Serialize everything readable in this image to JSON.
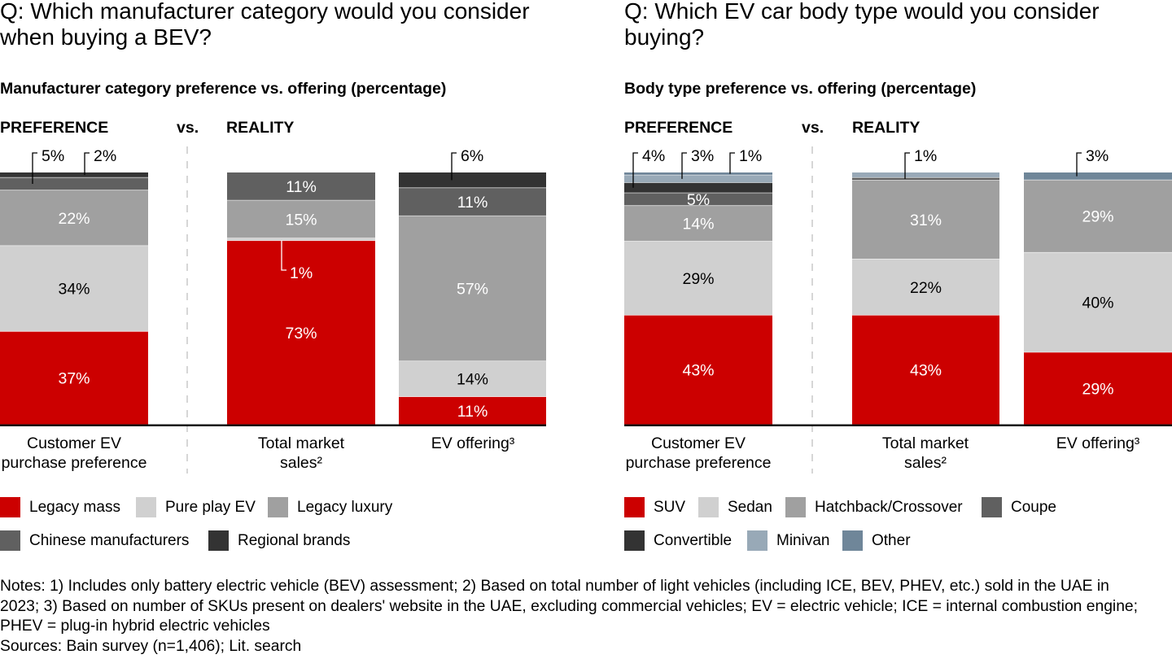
{
  "colors": {
    "red": "#cc0000",
    "light_gray": "#d0d0d0",
    "mid_gray": "#a0a0a0",
    "dark_gray": "#606060",
    "darkest": "#333333",
    "minivan": "#98a9b7",
    "other": "#6f8699",
    "divider": "#c8c8c8",
    "baseline": "#111111"
  },
  "panels": [
    {
      "question_lines": [
        "Q: Which manufacturer category would you consider",
        "when buying a BEV?"
      ],
      "vs_label": "vs."
    },
    {
      "question_lines": [
        "Q: Which EV car body type would you consider",
        "buying?"
      ],
      "vs_label": "vs."
    }
  ],
  "chart_data": [
    {
      "type": "bar",
      "stacked": true,
      "title": "Manufacturer category preference vs. offering (percentage)",
      "xlabel": "",
      "ylabel": "",
      "ylim": [
        0,
        100
      ],
      "unit": "%",
      "grid": false,
      "legend_position": "bottom",
      "groups": [
        {
          "name": "PREFERENCE",
          "bars": [
            0
          ]
        },
        {
          "name": "REALITY",
          "bars": [
            1,
            2
          ]
        }
      ],
      "categories": [
        "Customer EV purchase preference",
        "Total market sales²",
        "EV offering³"
      ],
      "series": [
        {
          "name": "Legacy mass",
          "color": "#cc0000",
          "values": [
            37,
            73,
            11
          ]
        },
        {
          "name": "Pure play EV",
          "color": "#d0d0d0",
          "values": [
            34,
            1,
            14
          ]
        },
        {
          "name": "Legacy luxury",
          "color": "#a0a0a0",
          "values": [
            22,
            15,
            57
          ]
        },
        {
          "name": "Chinese manufacturers",
          "color": "#606060",
          "values": [
            5,
            11,
            11
          ]
        },
        {
          "name": "Regional brands",
          "color": "#333333",
          "values": [
            2,
            0,
            6
          ]
        }
      ],
      "bars": [
        {
          "category": "Customer EV purchase preference",
          "segments": [
            {
              "series": "Legacy mass",
              "value": 37,
              "label": "37%",
              "label_position": "inside"
            },
            {
              "series": "Pure play EV",
              "value": 34,
              "label": "34%",
              "label_position": "inside"
            },
            {
              "series": "Legacy luxury",
              "value": 22,
              "label": "22%",
              "label_position": "inside"
            },
            {
              "series": "Chinese manufacturers",
              "value": 5,
              "label": "5%",
              "label_position": "callout-above"
            },
            {
              "series": "Regional brands",
              "value": 2,
              "label": "2%",
              "label_position": "callout-above"
            }
          ]
        },
        {
          "category": "Total market sales²",
          "segments": [
            {
              "series": "Legacy mass",
              "value": 73,
              "label": "73%",
              "label_position": "inside"
            },
            {
              "series": "Pure play EV",
              "value": 1,
              "label": "1%",
              "label_position": "callout-below"
            },
            {
              "series": "Legacy luxury",
              "value": 15,
              "label": "15%",
              "label_position": "inside"
            },
            {
              "series": "Chinese manufacturers",
              "value": 11,
              "label": "11%",
              "label_position": "inside"
            }
          ]
        },
        {
          "category": "EV offering³",
          "segments": [
            {
              "series": "Legacy mass",
              "value": 11,
              "label": "11%",
              "label_position": "inside"
            },
            {
              "series": "Pure play EV",
              "value": 14,
              "label": "14%",
              "label_position": "inside"
            },
            {
              "series": "Legacy luxury",
              "value": 57,
              "label": "57%",
              "label_position": "inside"
            },
            {
              "series": "Chinese manufacturers",
              "value": 11,
              "label": "11%",
              "label_position": "inside"
            },
            {
              "series": "Regional brands",
              "value": 6,
              "label": "6%",
              "label_position": "callout-above"
            }
          ]
        }
      ]
    },
    {
      "type": "bar",
      "stacked": true,
      "title": "Body type preference vs. offering (percentage)",
      "xlabel": "",
      "ylabel": "",
      "ylim": [
        0,
        100
      ],
      "unit": "%",
      "grid": false,
      "legend_position": "bottom",
      "groups": [
        {
          "name": "PREFERENCE",
          "bars": [
            0
          ]
        },
        {
          "name": "REALITY",
          "bars": [
            1,
            2
          ]
        }
      ],
      "categories": [
        "Customer EV purchase preference",
        "Total market sales²",
        "EV offering³"
      ],
      "series": [
        {
          "name": "SUV",
          "color": "#cc0000",
          "values": [
            43,
            43,
            29
          ]
        },
        {
          "name": "Sedan",
          "color": "#d0d0d0",
          "values": [
            29,
            22,
            40
          ]
        },
        {
          "name": "Hatchback/Crossover",
          "color": "#a0a0a0",
          "values": [
            14,
            31,
            29
          ]
        },
        {
          "name": "Coupe",
          "color": "#606060",
          "values": [
            5,
            1,
            0
          ]
        },
        {
          "name": "Convertible",
          "color": "#333333",
          "values": [
            4,
            0,
            0
          ]
        },
        {
          "name": "Minivan",
          "color": "#98a9b7",
          "values": [
            3,
            2,
            0
          ]
        },
        {
          "name": "Other",
          "color": "#6f8699",
          "values": [
            1,
            0,
            3
          ]
        }
      ],
      "bars": [
        {
          "category": "Customer EV purchase preference",
          "segments": [
            {
              "series": "SUV",
              "value": 43,
              "label": "43%",
              "label_position": "inside"
            },
            {
              "series": "Sedan",
              "value": 29,
              "label": "29%",
              "label_position": "inside"
            },
            {
              "series": "Hatchback/Crossover",
              "value": 14,
              "label": "14%",
              "label_position": "inside"
            },
            {
              "series": "Coupe",
              "value": 5,
              "label": "5%",
              "label_position": "inside"
            },
            {
              "series": "Convertible",
              "value": 4,
              "label": "4%",
              "label_position": "callout-above"
            },
            {
              "series": "Minivan",
              "value": 3,
              "label": "3%",
              "label_position": "callout-above"
            },
            {
              "series": "Other",
              "value": 1,
              "label": "1%",
              "label_position": "callout-above"
            }
          ]
        },
        {
          "category": "Total market sales²",
          "segments": [
            {
              "series": "SUV",
              "value": 43,
              "label": "43%",
              "label_position": "inside"
            },
            {
              "series": "Sedan",
              "value": 22,
              "label": "22%",
              "label_position": "inside"
            },
            {
              "series": "Hatchback/Crossover",
              "value": 31,
              "label": "31%",
              "label_position": "inside"
            },
            {
              "series": "Coupe",
              "value": 1,
              "label": "1%",
              "label_position": "callout-above"
            },
            {
              "series": "Minivan",
              "value": 2,
              "label": null,
              "label_position": "none"
            }
          ]
        },
        {
          "category": "EV offering³",
          "segments": [
            {
              "series": "SUV",
              "value": 29,
              "label": "29%",
              "label_position": "inside"
            },
            {
              "series": "Sedan",
              "value": 40,
              "label": "40%",
              "label_position": "inside"
            },
            {
              "series": "Hatchback/Crossover",
              "value": 29,
              "label": "29%",
              "label_position": "inside"
            },
            {
              "series": "Other",
              "value": 3,
              "label": "3%",
              "label_position": "callout-above"
            }
          ]
        }
      ]
    }
  ],
  "footer": {
    "notes_lines": [
      "Notes: 1) Includes only battery electric vehicle (BEV) assessment; 2) Based on total number of light vehicles (including ICE, BEV, PHEV, etc.) sold in the UAE in",
      "2023; 3) Based on number of SKUs present on dealers' website in the UAE, excluding commercial vehicles; EV = electric vehicle; ICE = internal combustion engine;",
      "PHEV = plug-in hybrid electric vehicles"
    ],
    "sources": "Sources: Bain survey (n=1,406); Lit. search"
  }
}
